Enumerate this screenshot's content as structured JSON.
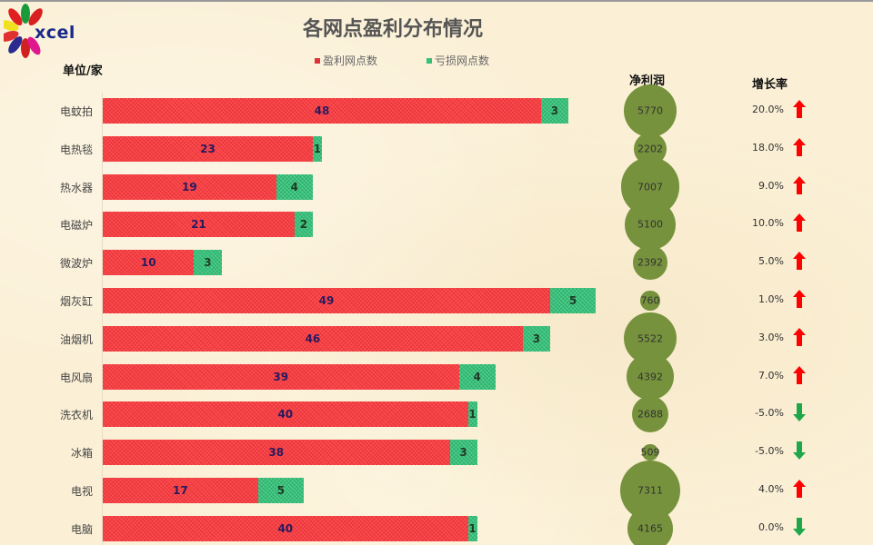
{
  "logo": {
    "text": "xcel"
  },
  "title": "各网点盈利分布情况",
  "unit_label": "单位/家",
  "legend": [
    {
      "label": "盈利网点数",
      "color": "#ff4d4d"
    },
    {
      "label": "亏损网点数",
      "color": "#49d08c"
    }
  ],
  "columns": {
    "net_profit": "净利润",
    "growth_rate": "增长率"
  },
  "colors": {
    "profit": "#ff4d4d",
    "loss": "#49d08c",
    "bubble": "#76923c",
    "up": "#ff0000",
    "down": "#1fa84a"
  },
  "chart_data": {
    "type": "bar",
    "orientation": "horizontal",
    "stacked": true,
    "title": "各网点盈利分布情况",
    "ylabel": "单位/家",
    "categories": [
      "电蚊拍",
      "电热毯",
      "热水器",
      "电磁炉",
      "微波炉",
      "烟灰缸",
      "油烟机",
      "电风扇",
      "洗衣机",
      "冰箱",
      "电视",
      "电脑"
    ],
    "series": [
      {
        "name": "盈利网点数",
        "values": [
          48,
          23,
          19,
          21,
          10,
          49,
          46,
          39,
          40,
          38,
          17,
          40
        ]
      },
      {
        "name": "亏损网点数",
        "values": [
          3,
          1,
          4,
          2,
          3,
          5,
          3,
          4,
          1,
          3,
          5,
          1
        ]
      }
    ],
    "net_profit": [
      5770,
      2202,
      7007,
      5100,
      2392,
      760,
      5522,
      4392,
      2688,
      509,
      7311,
      4165
    ],
    "growth_rate": [
      "20.0%",
      "18.0%",
      "9.0%",
      "10.0%",
      "5.0%",
      "1.0%",
      "3.0%",
      "7.0%",
      "-5.0%",
      "-5.0%",
      "4.0%",
      "0.0%"
    ],
    "growth_direction": [
      "up",
      "up",
      "up",
      "up",
      "up",
      "up",
      "up",
      "up",
      "down",
      "down",
      "up",
      "down"
    ],
    "legend_position": "top",
    "grid": false
  }
}
